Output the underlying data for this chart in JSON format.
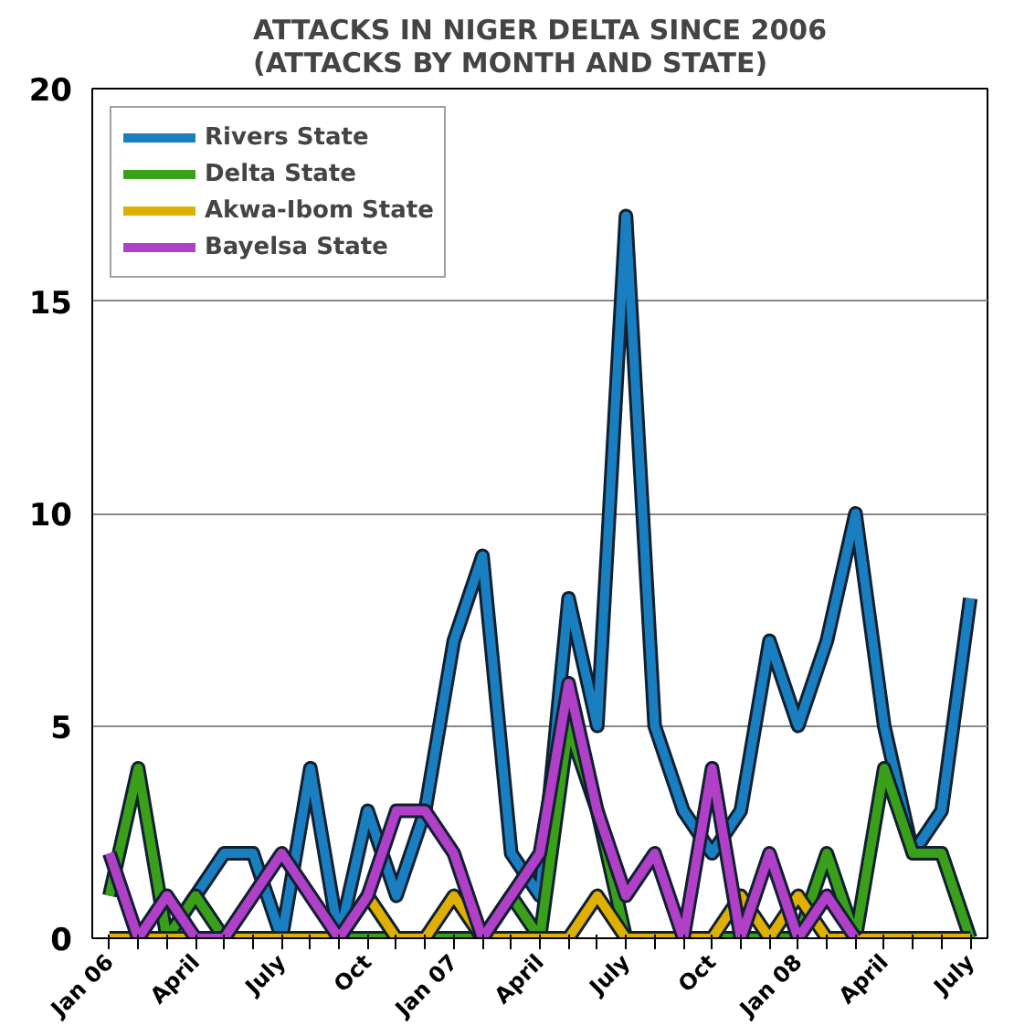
{
  "chart_data": {
    "type": "line",
    "title": "ATTACKS IN NIGER DELTA SINCE 2006\n(ATTACKS BY MONTH AND STATE)",
    "categories": [
      "Jan 06",
      null,
      null,
      "April",
      null,
      null,
      "July",
      null,
      null,
      "Oct",
      null,
      null,
      "Jan 07",
      null,
      null,
      "April",
      null,
      null,
      "July",
      null,
      null,
      "Oct",
      null,
      null,
      "Jan 08",
      null,
      null,
      "April",
      null,
      null,
      "July"
    ],
    "series": [
      {
        "name": "Rivers State",
        "color": "#1a7fc1",
        "values": [
          null,
          null,
          0,
          1,
          2,
          2,
          0,
          4,
          0,
          3,
          1,
          3,
          7,
          9,
          2,
          1,
          8,
          5,
          17,
          5,
          3,
          2,
          3,
          7,
          5,
          7,
          10,
          5,
          2,
          3,
          8
        ]
      },
      {
        "name": "Delta State",
        "color": "#3aa01a",
        "values": [
          1,
          4,
          0,
          1,
          0,
          0,
          0,
          0,
          0,
          0,
          0,
          0,
          0,
          0,
          1,
          0,
          5,
          3,
          0,
          0,
          0,
          0,
          0,
          0,
          0,
          2,
          0,
          4,
          2,
          2,
          0
        ]
      },
      {
        "name": "Akwa-Ibom State",
        "color": "#e0b000",
        "values": [
          0,
          0,
          0,
          0,
          0,
          0,
          0,
          0,
          0,
          1,
          0,
          0,
          1,
          0,
          0,
          0,
          0,
          1,
          0,
          0,
          0,
          0,
          1,
          0,
          1,
          0,
          0,
          0,
          0,
          0,
          0
        ]
      },
      {
        "name": "Bayelsa State",
        "color": "#b040c8",
        "values": [
          2,
          0,
          1,
          0,
          0,
          1,
          2,
          1,
          0,
          1,
          3,
          3,
          2,
          0,
          1,
          2,
          6,
          3,
          1,
          2,
          0,
          4,
          0,
          2,
          0,
          1,
          0,
          null,
          null,
          null,
          null
        ]
      }
    ],
    "ylim": [
      0,
      20
    ],
    "yticks": [
      0,
      5,
      10,
      15,
      20
    ],
    "grid": "y",
    "legend": "top left"
  }
}
